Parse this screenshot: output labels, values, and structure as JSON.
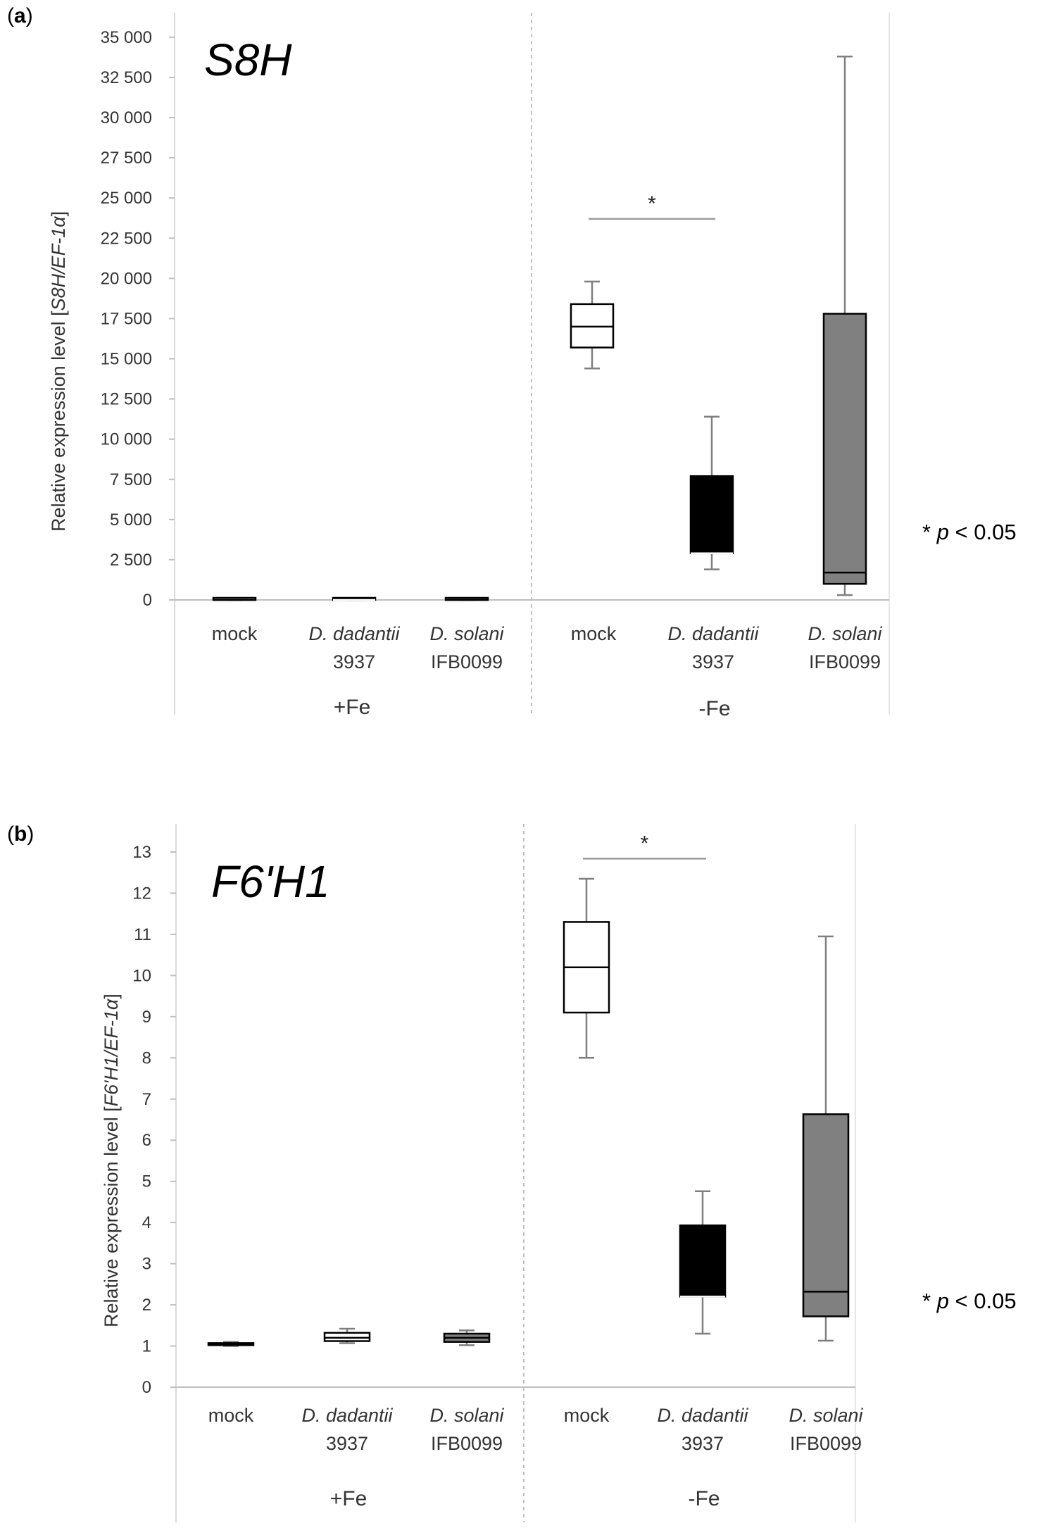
{
  "panel_a": {
    "label_open": "(",
    "label_letter": "a",
    "label_close": ")",
    "gene": "S8H",
    "ylabel_prefix": "Relative expression level [",
    "ylabel_gene": "S8H/EF-1α",
    "ylabel_suffix": "]",
    "pval_star": "* ",
    "pval_p": "p",
    "pval_rest": " < 0.05",
    "sig_star": "*",
    "groups": [
      "+Fe",
      "-Fe"
    ],
    "categories": [
      {
        "l1": "mock",
        "l2": ""
      },
      {
        "l1": "D. dadantii",
        "l2": "3937"
      },
      {
        "l1": "D. solani",
        "l2": "IFB0099"
      },
      {
        "l1": "mock",
        "l2": ""
      },
      {
        "l1": "D. dadantii",
        "l2": "3937"
      },
      {
        "l1": "D. solani",
        "l2": "IFB0099"
      }
    ]
  },
  "panel_b": {
    "label_open": "(",
    "label_letter": "b",
    "label_close": ")",
    "gene": "F6'H1",
    "ylabel_prefix": "Relative expression level [",
    "ylabel_gene": "F6'H1/EF-1α",
    "ylabel_suffix": "]",
    "pval_star": "* ",
    "pval_p": "p",
    "pval_rest": " < 0.05",
    "sig_star": "*",
    "groups": [
      "+Fe",
      "-Fe"
    ],
    "categories": [
      {
        "l1": "mock",
        "l2": ""
      },
      {
        "l1": "D. dadantii",
        "l2": "3937"
      },
      {
        "l1": "D. solani",
        "l2": "IFB0099"
      },
      {
        "l1": "mock",
        "l2": ""
      },
      {
        "l1": "D. dadantii",
        "l2": "3937"
      },
      {
        "l1": "D. solani",
        "l2": "IFB0099"
      }
    ]
  },
  "chart_data": [
    {
      "type": "box",
      "title": "S8H",
      "ylabel": "Relative expression level [S8H/EF-1α]",
      "ylim": [
        0,
        36000
      ],
      "yticks": [
        0,
        2500,
        5000,
        7500,
        10000,
        12500,
        15000,
        17500,
        20000,
        22500,
        25000,
        27500,
        30000,
        32500,
        35000
      ],
      "ytick_labels": [
        "0",
        "2 500",
        "5 000",
        "7 500",
        "10 000",
        "12 500",
        "15 000",
        "17 500",
        "20 000",
        "22 500",
        "25 000",
        "27 500",
        "30 000",
        "32 500",
        "35 000"
      ],
      "categories": [
        "mock",
        "D. dadantii 3937",
        "D. solani IFB0099",
        "mock",
        "D. dadantii 3937",
        "D. solani IFB0099"
      ],
      "groups": [
        {
          "name": "+Fe",
          "members": [
            0,
            1,
            2
          ]
        },
        {
          "name": "-Fe",
          "members": [
            3,
            4,
            5
          ]
        }
      ],
      "boxes": [
        {
          "min": 0,
          "q1": 0,
          "median": 0,
          "q3": 0,
          "max": 0,
          "fill": "#ffffff"
        },
        {
          "min": 0,
          "q1": 0,
          "median": 0,
          "q3": 0,
          "max": 0,
          "fill": "#000000"
        },
        {
          "min": 0,
          "q1": 0,
          "median": 0,
          "q3": 0,
          "max": 0,
          "fill": "#808080"
        },
        {
          "min": 14400,
          "q1": 15700,
          "median": 17000,
          "q3": 18400,
          "max": 19800,
          "fill": "#ffffff"
        },
        {
          "min": 1900,
          "q1": 2900,
          "median": 2900,
          "q3": 7700,
          "max": 11400,
          "fill": "#000000"
        },
        {
          "min": 300,
          "q1": 1000,
          "median": 1700,
          "q3": 17800,
          "max": 33800,
          "fill": "#808080"
        }
      ],
      "significance": {
        "from": 3,
        "to": 4,
        "y": 23700,
        "label": "*"
      },
      "annotation": "* p < 0.05"
    },
    {
      "type": "box",
      "title": "F6'H1",
      "ylabel": "Relative expression level [F6'H1/EF-1α]",
      "ylim": [
        0,
        13
      ],
      "yticks": [
        0,
        1,
        2,
        3,
        4,
        5,
        6,
        7,
        8,
        9,
        10,
        11,
        12,
        13
      ],
      "ytick_labels": [
        "0",
        "1",
        "2",
        "3",
        "4",
        "5",
        "6",
        "7",
        "8",
        "9",
        "10",
        "11",
        "12",
        "13"
      ],
      "categories": [
        "mock",
        "D. dadantii 3937",
        "D. solani IFB0099",
        "mock",
        "D. dadantii 3937",
        "D. solani IFB0099"
      ],
      "groups": [
        {
          "name": "+Fe",
          "members": [
            0,
            1,
            2
          ]
        },
        {
          "name": "-Fe",
          "members": [
            3,
            4,
            5
          ]
        }
      ],
      "boxes": [
        {
          "min": 1.0,
          "q1": 1.02,
          "median": 1.05,
          "q3": 1.07,
          "max": 1.1,
          "fill": "#ffffff"
        },
        {
          "min": 1.07,
          "q1": 1.12,
          "median": 1.2,
          "q3": 1.32,
          "max": 1.42,
          "fill": "#ffffff"
        },
        {
          "min": 1.02,
          "q1": 1.1,
          "median": 1.2,
          "q3": 1.3,
          "max": 1.38,
          "fill": "#808080"
        },
        {
          "min": 8.0,
          "q1": 9.1,
          "median": 10.2,
          "q3": 11.3,
          "max": 12.35,
          "fill": "#ffffff"
        },
        {
          "min": 1.3,
          "q1": 2.2,
          "median": 2.2,
          "q3": 3.93,
          "max": 4.76,
          "fill": "#000000"
        },
        {
          "min": 1.13,
          "q1": 1.72,
          "median": 2.32,
          "q3": 6.63,
          "max": 10.95,
          "fill": "#808080"
        }
      ],
      "significance": {
        "from": 3,
        "to": 4,
        "y": 12.84,
        "label": "*"
      },
      "annotation": "* p < 0.05"
    }
  ]
}
